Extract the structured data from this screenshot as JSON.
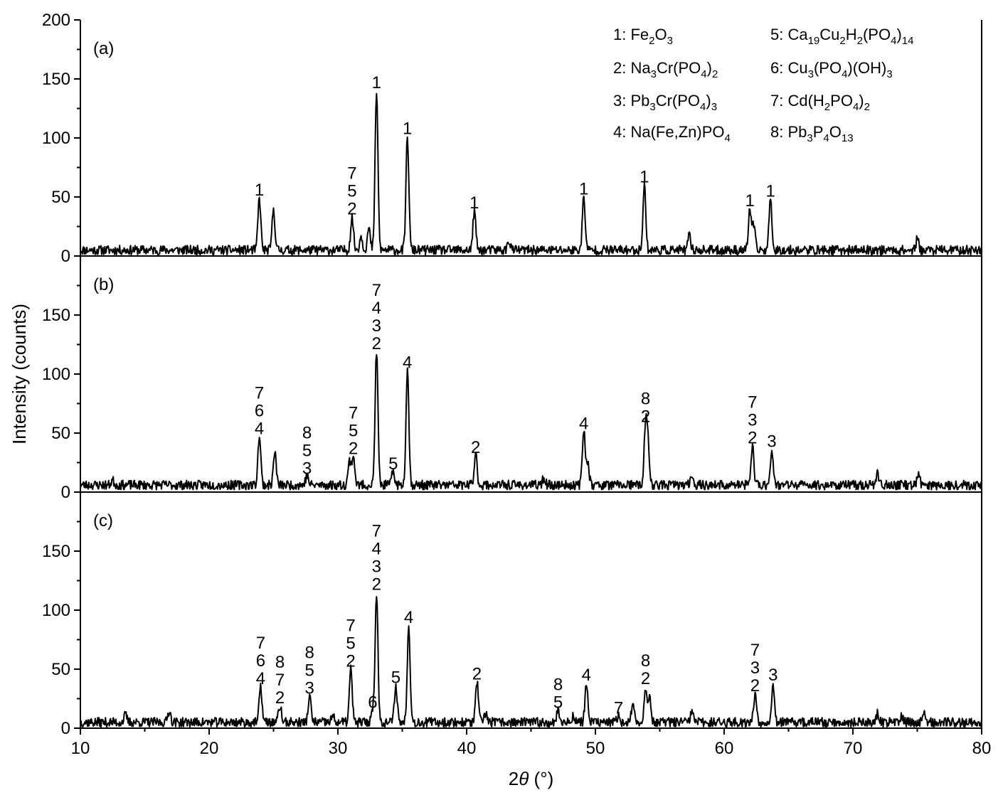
{
  "chart_data": {
    "type": "line",
    "xlabel_prefix": "2",
    "xlabel_var": "θ",
    "xlabel_suffix": " (°)",
    "ylabel": "Intensity (counts)",
    "xlim": [
      10,
      80
    ],
    "x_ticks": [
      "10",
      "20",
      "30",
      "40",
      "50",
      "60",
      "70",
      "80"
    ],
    "ylim": [
      0,
      200
    ],
    "grid": false,
    "legend_placement": "top-right",
    "legend": [
      {
        "key": "1",
        "parts": [
          [
            "1: Fe",
            ""
          ],
          [
            "2",
            "sub"
          ],
          [
            "O",
            ""
          ],
          [
            "3",
            "sub"
          ]
        ]
      },
      {
        "key": "2",
        "parts": [
          [
            "2: Na",
            ""
          ],
          [
            "3",
            "sub"
          ],
          [
            "Cr(PO",
            ""
          ],
          [
            "4",
            "sub"
          ],
          [
            ")",
            ""
          ],
          [
            "2",
            "sub"
          ]
        ]
      },
      {
        "key": "3",
        "parts": [
          [
            "3: Pb",
            ""
          ],
          [
            "3",
            "sub"
          ],
          [
            "Cr(PO",
            ""
          ],
          [
            "4",
            "sub"
          ],
          [
            ")",
            ""
          ],
          [
            "3",
            "sub"
          ]
        ]
      },
      {
        "key": "4",
        "parts": [
          [
            "4: Na(Fe,Zn)PO",
            ""
          ],
          [
            "4",
            "sub"
          ]
        ]
      },
      {
        "key": "5",
        "parts": [
          [
            "5: Ca",
            ""
          ],
          [
            "19",
            "sub"
          ],
          [
            "Cu",
            ""
          ],
          [
            "2",
            "sub"
          ],
          [
            "H",
            ""
          ],
          [
            "2",
            "sub"
          ],
          [
            "(PO",
            ""
          ],
          [
            "4",
            "sub"
          ],
          [
            ")",
            ""
          ],
          [
            "14",
            "sub"
          ]
        ]
      },
      {
        "key": "6",
        "parts": [
          [
            "6: Cu",
            ""
          ],
          [
            "3",
            "sub"
          ],
          [
            "(PO",
            ""
          ],
          [
            "4",
            "sub"
          ],
          [
            ")(OH)",
            ""
          ],
          [
            "3",
            "sub"
          ]
        ]
      },
      {
        "key": "7",
        "parts": [
          [
            "7: Cd(H",
            ""
          ],
          [
            "2",
            "sub"
          ],
          [
            "PO",
            ""
          ],
          [
            "4",
            "sub"
          ],
          [
            ")",
            ""
          ],
          [
            "2",
            "sub"
          ]
        ]
      },
      {
        "key": "8",
        "parts": [
          [
            "8: Pb",
            ""
          ],
          [
            "3",
            "sub"
          ],
          [
            "P",
            ""
          ],
          [
            "4",
            "sub"
          ],
          [
            "O",
            ""
          ],
          [
            "13",
            "sub"
          ]
        ]
      }
    ],
    "panels": [
      {
        "label": "(a)",
        "y_ticks": [
          "0",
          "50",
          "100",
          "150",
          "200"
        ],
        "baseline": 5,
        "noise": 4,
        "seed": 11,
        "peaks": [
          [
            23.9,
            44
          ],
          [
            25.0,
            35
          ],
          [
            31.1,
            28
          ],
          [
            31.8,
            12
          ],
          [
            32.4,
            18
          ],
          [
            33.0,
            135
          ],
          [
            35.4,
            96
          ],
          [
            40.6,
            33
          ],
          [
            43.3,
            8
          ],
          [
            49.1,
            45
          ],
          [
            53.8,
            55
          ],
          [
            57.3,
            12
          ],
          [
            62.0,
            35
          ],
          [
            62.3,
            20
          ],
          [
            63.6,
            43
          ],
          [
            75.0,
            9
          ]
        ],
        "annotations": [
          {
            "x": 23.9,
            "y": 44,
            "lines": [
              "1"
            ]
          },
          {
            "x": 31.1,
            "y": 28,
            "lines": [
              "7",
              "5",
              "2"
            ]
          },
          {
            "x": 33.0,
            "y": 135,
            "lines": [
              "1"
            ]
          },
          {
            "x": 35.4,
            "y": 96,
            "lines": [
              "1"
            ]
          },
          {
            "x": 40.6,
            "y": 33,
            "lines": [
              "1"
            ]
          },
          {
            "x": 49.1,
            "y": 45,
            "lines": [
              "1"
            ]
          },
          {
            "x": 53.8,
            "y": 55,
            "lines": [
              "1"
            ]
          },
          {
            "x": 62.0,
            "y": 35,
            "lines": [
              "1"
            ]
          },
          {
            "x": 63.6,
            "y": 43,
            "lines": [
              "1"
            ]
          }
        ]
      },
      {
        "label": "(b)",
        "y_ticks": [
          "0",
          "50",
          "100",
          "150"
        ],
        "baseline": 6,
        "noise": 4,
        "seed": 23,
        "peaks": [
          [
            12.5,
            4
          ],
          [
            23.9,
            42
          ],
          [
            25.1,
            28
          ],
          [
            27.6,
            8
          ],
          [
            30.9,
            20
          ],
          [
            31.2,
            25
          ],
          [
            33.0,
            114
          ],
          [
            34.3,
            12
          ],
          [
            35.4,
            98
          ],
          [
            40.7,
            26
          ],
          [
            46.0,
            6
          ],
          [
            49.1,
            46
          ],
          [
            49.4,
            20
          ],
          [
            53.9,
            52
          ],
          [
            54.1,
            30
          ],
          [
            57.5,
            9
          ],
          [
            62.2,
            34
          ],
          [
            63.7,
            31
          ],
          [
            71.9,
            10
          ],
          [
            75.1,
            8
          ]
        ],
        "annotations": [
          {
            "x": 23.9,
            "y": 42,
            "lines": [
              "7",
              "6",
              "4"
            ]
          },
          {
            "x": 27.6,
            "y": 8,
            "lines": [
              "8",
              "5",
              "3"
            ]
          },
          {
            "x": 31.2,
            "y": 25,
            "lines": [
              "7",
              "5",
              "2"
            ]
          },
          {
            "x": 33.0,
            "y": 114,
            "lines": [
              "7",
              "4",
              "3",
              "2"
            ]
          },
          {
            "x": 34.3,
            "y": 12,
            "lines": [
              "5"
            ]
          },
          {
            "x": 35.4,
            "y": 98,
            "lines": [
              "4"
            ]
          },
          {
            "x": 40.7,
            "y": 26,
            "lines": [
              "2"
            ]
          },
          {
            "x": 49.1,
            "y": 46,
            "lines": [
              "4"
            ]
          },
          {
            "x": 53.9,
            "y": 52,
            "lines": [
              "8",
              "2"
            ]
          },
          {
            "x": 62.2,
            "y": 34,
            "lines": [
              "7",
              "3",
              "2"
            ]
          },
          {
            "x": 63.7,
            "y": 31,
            "lines": [
              "3"
            ]
          }
        ]
      },
      {
        "label": "(c)",
        "y_ticks": [
          "0",
          "50",
          "100",
          "150"
        ],
        "baseline": 5,
        "noise": 4,
        "seed": 37,
        "peaks": [
          [
            13.5,
            6
          ],
          [
            16.9,
            10
          ],
          [
            24.0,
            30
          ],
          [
            25.5,
            14
          ],
          [
            27.8,
            22
          ],
          [
            29.6,
            5
          ],
          [
            31.0,
            45
          ],
          [
            32.7,
            10
          ],
          [
            33.0,
            110
          ],
          [
            34.5,
            31
          ],
          [
            35.5,
            82
          ],
          [
            40.8,
            34
          ],
          [
            41.5,
            8
          ],
          [
            47.1,
            10
          ],
          [
            48.3,
            6
          ],
          [
            49.3,
            33
          ],
          [
            51.8,
            5
          ],
          [
            52.9,
            14
          ],
          [
            53.9,
            30
          ],
          [
            54.2,
            20
          ],
          [
            57.5,
            9
          ],
          [
            62.4,
            24
          ],
          [
            63.8,
            33
          ],
          [
            71.9,
            7
          ],
          [
            73.8,
            6
          ],
          [
            75.5,
            7
          ]
        ],
        "annotations": [
          {
            "x": 24.0,
            "y": 30,
            "lines": [
              "7",
              "6",
              "4"
            ]
          },
          {
            "x": 25.5,
            "y": 14,
            "lines": [
              "8",
              "7",
              "2"
            ]
          },
          {
            "x": 27.8,
            "y": 22,
            "lines": [
              "8",
              "5",
              "3"
            ]
          },
          {
            "x": 31.0,
            "y": 45,
            "lines": [
              "7",
              "5",
              "2"
            ]
          },
          {
            "x": 32.7,
            "y": 10,
            "lines": [
              "6"
            ]
          },
          {
            "x": 33.0,
            "y": 110,
            "lines": [
              "7",
              "4",
              "3",
              "2"
            ]
          },
          {
            "x": 34.5,
            "y": 31,
            "lines": [
              "5"
            ]
          },
          {
            "x": 35.5,
            "y": 82,
            "lines": [
              "4"
            ]
          },
          {
            "x": 40.8,
            "y": 34,
            "lines": [
              "2"
            ]
          },
          {
            "x": 47.1,
            "y": 10,
            "lines": [
              "8",
              "5"
            ]
          },
          {
            "x": 49.3,
            "y": 33,
            "lines": [
              "4"
            ]
          },
          {
            "x": 51.8,
            "y": 5,
            "lines": [
              "7"
            ]
          },
          {
            "x": 53.9,
            "y": 30,
            "lines": [
              "8",
              "2"
            ]
          },
          {
            "x": 62.4,
            "y": 24,
            "lines": [
              "7",
              "3",
              "2"
            ]
          },
          {
            "x": 63.8,
            "y": 33,
            "lines": [
              "3"
            ]
          }
        ]
      }
    ]
  }
}
